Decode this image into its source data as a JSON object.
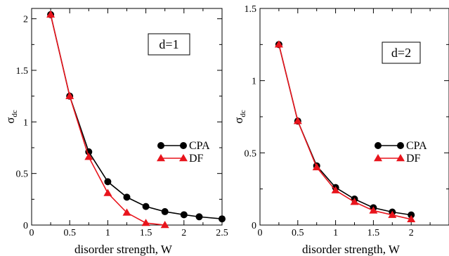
{
  "chart_data": [
    {
      "type": "line",
      "annotation": "d=1",
      "xlabel": "disorder strength, W",
      "ylabel": "σ",
      "ylabel_sub": "dc",
      "xlim": [
        0,
        2.5
      ],
      "ylim": [
        0,
        2.1
      ],
      "xticks": [
        0,
        0.5,
        1,
        1.5,
        2,
        2.5
      ],
      "xtick_labels": [
        "0",
        "0.5",
        "1",
        "1.5",
        "2",
        "2.5"
      ],
      "yticks": [
        0,
        0.5,
        1,
        1.5,
        2
      ],
      "ytick_labels": [
        "0",
        "0.5",
        "1",
        "1.5",
        "2"
      ],
      "legend_position": "center-right",
      "series": [
        {
          "name": "CPA",
          "color": "#000000",
          "marker": "circle",
          "x": [
            0.25,
            0.5,
            0.75,
            1.0,
            1.25,
            1.5,
            1.75,
            2.0,
            2.2,
            2.5
          ],
          "y": [
            2.04,
            1.25,
            0.71,
            0.42,
            0.27,
            0.18,
            0.13,
            0.1,
            0.08,
            0.06
          ]
        },
        {
          "name": "DF",
          "color": "#e8141c",
          "marker": "triangle",
          "x": [
            0.25,
            0.5,
            0.75,
            1.0,
            1.25,
            1.5,
            1.75
          ],
          "y": [
            2.04,
            1.25,
            0.66,
            0.31,
            0.12,
            0.02,
            0.0
          ]
        }
      ]
    },
    {
      "type": "line",
      "annotation": "d=2",
      "xlabel": "disorder strength, W",
      "ylabel": "σ",
      "ylabel_sub": "dc",
      "xlim": [
        0,
        2.5
      ],
      "ylim": [
        0,
        1.5
      ],
      "xticks": [
        0,
        0.5,
        1,
        1.5,
        2
      ],
      "xtick_labels": [
        "0",
        "0.5",
        "1",
        "1.5",
        "2"
      ],
      "yticks": [
        0,
        0.5,
        1,
        1.5
      ],
      "ytick_labels": [
        "0",
        "0.5",
        "1",
        "1.5"
      ],
      "legend_position": "center-right",
      "series": [
        {
          "name": "CPA",
          "color": "#000000",
          "marker": "circle",
          "x": [
            0.25,
            0.5,
            0.75,
            1.0,
            1.25,
            1.5,
            1.75,
            2.0
          ],
          "y": [
            1.25,
            0.72,
            0.41,
            0.26,
            0.18,
            0.12,
            0.09,
            0.07
          ]
        },
        {
          "name": "DF",
          "color": "#e8141c",
          "marker": "triangle",
          "x": [
            0.25,
            0.5,
            0.75,
            1.0,
            1.25,
            1.5,
            1.75,
            2.0
          ],
          "y": [
            1.25,
            0.72,
            0.4,
            0.24,
            0.16,
            0.1,
            0.07,
            0.04
          ]
        }
      ]
    }
  ]
}
